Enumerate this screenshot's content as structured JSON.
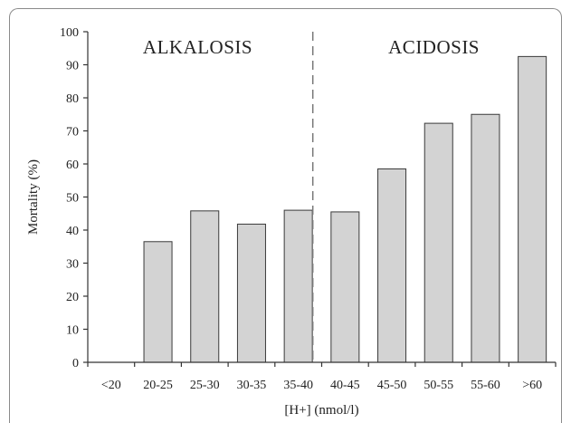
{
  "chart_data": {
    "type": "bar",
    "categories": [
      "<20",
      "20-25",
      "25-30",
      "30-35",
      "35-40",
      "40-45",
      "45-50",
      "50-55",
      "55-60",
      ">60"
    ],
    "values": [
      0,
      36.5,
      45.8,
      41.8,
      46.0,
      45.5,
      58.5,
      72.3,
      75.0,
      92.5
    ],
    "xlabel": "[H+] (nmol/l)",
    "ylabel": "Mortality (%)",
    "ylim": [
      0,
      100
    ],
    "yticks": [
      "0",
      "10",
      "20",
      "30",
      "40",
      "50",
      "60",
      "70",
      "80",
      "90",
      "100"
    ],
    "divider_after_category": "35-40",
    "annotations": {
      "left": "ALKALOSIS",
      "right": "ACIDOSIS"
    },
    "grid": false,
    "colors": {
      "bar_fill": "#d3d3d3",
      "bar_stroke": "#3a3a3a",
      "axis": "#333333",
      "divider": "#777777"
    }
  }
}
